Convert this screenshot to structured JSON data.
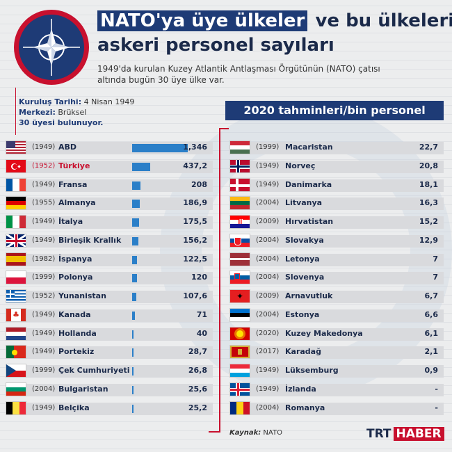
{
  "title": {
    "highlight": "NATO'ya üye ülkeler",
    "rest": "ve bu ülkelerin",
    "line2": "askeri personel sayıları"
  },
  "description": "1949'da kurulan Kuzey Atlantik Antlaşması Örgütünün (NATO) çatısı altında bugün 30 üye ülke var.",
  "info": {
    "founded_label": "Kuruluş Tarihi:",
    "founded_value": "4 Nisan 1949",
    "hq_label": "Merkezi:",
    "hq_value": "Brüksel",
    "members": "30 üyesi bulunuyor."
  },
  "banner": "2020 tahminleri/bin personel",
  "source": {
    "label": "Kaynak:",
    "value": "NATO"
  },
  "brand": {
    "trt": "TRT",
    "haber": "HABER"
  },
  "colors": {
    "navy": "#1e3b76",
    "red": "#c8102e",
    "bar": "#2b7fc8"
  },
  "chart_data": {
    "type": "bar",
    "ylabel": "",
    "categories": [
      "ABD",
      "Türkiye",
      "Fransa",
      "Almanya",
      "İtalya",
      "Birleşik Krallık",
      "İspanya",
      "Polonya",
      "Yunanistan",
      "Kanada",
      "Hollanda",
      "Portekiz",
      "Çek Cumhuriyeti",
      "Bulgaristan",
      "Belçika",
      "Macaristan",
      "Norveç",
      "Danimarka",
      "Litvanya",
      "Hırvatistan",
      "Slovakya",
      "Letonya",
      "Slovenya",
      "Arnavutluk",
      "Estonya",
      "Kuzey Makedonya",
      "Karadağ",
      "Lüksemburg",
      "İzlanda",
      "Romanya"
    ],
    "rows": [
      {
        "year": "(1949)",
        "country": "ABD",
        "value": 1346,
        "label": "1,346",
        "flag": "us-flag"
      },
      {
        "year": "(1952)",
        "country": "Türkiye",
        "value": 437.2,
        "label": "437,2",
        "flag": "tr-flag",
        "highlight": true
      },
      {
        "year": "(1949)",
        "country": "Fransa",
        "value": 208,
        "label": "208",
        "flag": "fr-flag"
      },
      {
        "year": "(1955)",
        "country": "Almanya",
        "value": 186.9,
        "label": "186,9",
        "flag": "de-flag"
      },
      {
        "year": "(1949)",
        "country": "İtalya",
        "value": 175.5,
        "label": "175,5",
        "flag": "it-flag"
      },
      {
        "year": "(1949)",
        "country": "Birleşik Krallık",
        "value": 156.2,
        "label": "156,2",
        "flag": "gb-flag"
      },
      {
        "year": "(1982)",
        "country": "İspanya",
        "value": 122.5,
        "label": "122,5",
        "flag": "es-flag"
      },
      {
        "year": "(1999)",
        "country": "Polonya",
        "value": 120,
        "label": "120",
        "flag": "pl-flag"
      },
      {
        "year": "(1952)",
        "country": "Yunanistan",
        "value": 107.6,
        "label": "107,6",
        "flag": "gr-flag"
      },
      {
        "year": "(1949)",
        "country": "Kanada",
        "value": 71,
        "label": "71",
        "flag": "ca-flag"
      },
      {
        "year": "(1949)",
        "country": "Hollanda",
        "value": 40,
        "label": "40",
        "flag": "nl-flag"
      },
      {
        "year": "(1949)",
        "country": "Portekiz",
        "value": 28.7,
        "label": "28,7",
        "flag": "pt-flag"
      },
      {
        "year": "(1999)",
        "country": "Çek Cumhuriyeti",
        "value": 26.8,
        "label": "26,8",
        "flag": "cz-flag"
      },
      {
        "year": "(2004)",
        "country": "Bulgaristan",
        "value": 25.6,
        "label": "25,6",
        "flag": "bg-flag"
      },
      {
        "year": "(1949)",
        "country": "Belçika",
        "value": 25.2,
        "label": "25,2",
        "flag": "be-flag"
      },
      {
        "year": "(1999)",
        "country": "Macaristan",
        "value": 22.7,
        "label": "22,7",
        "flag": "hu-flag"
      },
      {
        "year": "(1949)",
        "country": "Norveç",
        "value": 20.8,
        "label": "20,8",
        "flag": "no-flag"
      },
      {
        "year": "(1949)",
        "country": "Danimarka",
        "value": 18.1,
        "label": "18,1",
        "flag": "dk-flag"
      },
      {
        "year": "(2004)",
        "country": "Litvanya",
        "value": 16.3,
        "label": "16,3",
        "flag": "lt-flag"
      },
      {
        "year": "(2009)",
        "country": "Hırvatistan",
        "value": 15.2,
        "label": "15,2",
        "flag": "hr-flag"
      },
      {
        "year": "(2004)",
        "country": "Slovakya",
        "value": 12.9,
        "label": "12,9",
        "flag": "sk-flag"
      },
      {
        "year": "(2004)",
        "country": "Letonya",
        "value": 7,
        "label": "7",
        "flag": "lv-flag"
      },
      {
        "year": "(2004)",
        "country": "Slovenya",
        "value": 7,
        "label": "7",
        "flag": "si-flag"
      },
      {
        "year": "(2009)",
        "country": "Arnavutluk",
        "value": 6.7,
        "label": "6,7",
        "flag": "al-flag"
      },
      {
        "year": "(2004)",
        "country": "Estonya",
        "value": 6.6,
        "label": "6,6",
        "flag": "ee-flag"
      },
      {
        "year": "(2020)",
        "country": "Kuzey Makedonya",
        "value": 6.1,
        "label": "6,1",
        "flag": "mk-flag"
      },
      {
        "year": "(2017)",
        "country": "Karadağ",
        "value": 2.1,
        "label": "2,1",
        "flag": "me-flag"
      },
      {
        "year": "(1949)",
        "country": "Lüksemburg",
        "value": 0.9,
        "label": "0,9",
        "flag": "lu-flag"
      },
      {
        "year": "(1949)",
        "country": "İzlanda",
        "value": null,
        "label": "-",
        "flag": "is-flag"
      },
      {
        "year": "(2004)",
        "country": "Romanya",
        "value": null,
        "label": "-",
        "flag": "ro-flag"
      }
    ]
  }
}
